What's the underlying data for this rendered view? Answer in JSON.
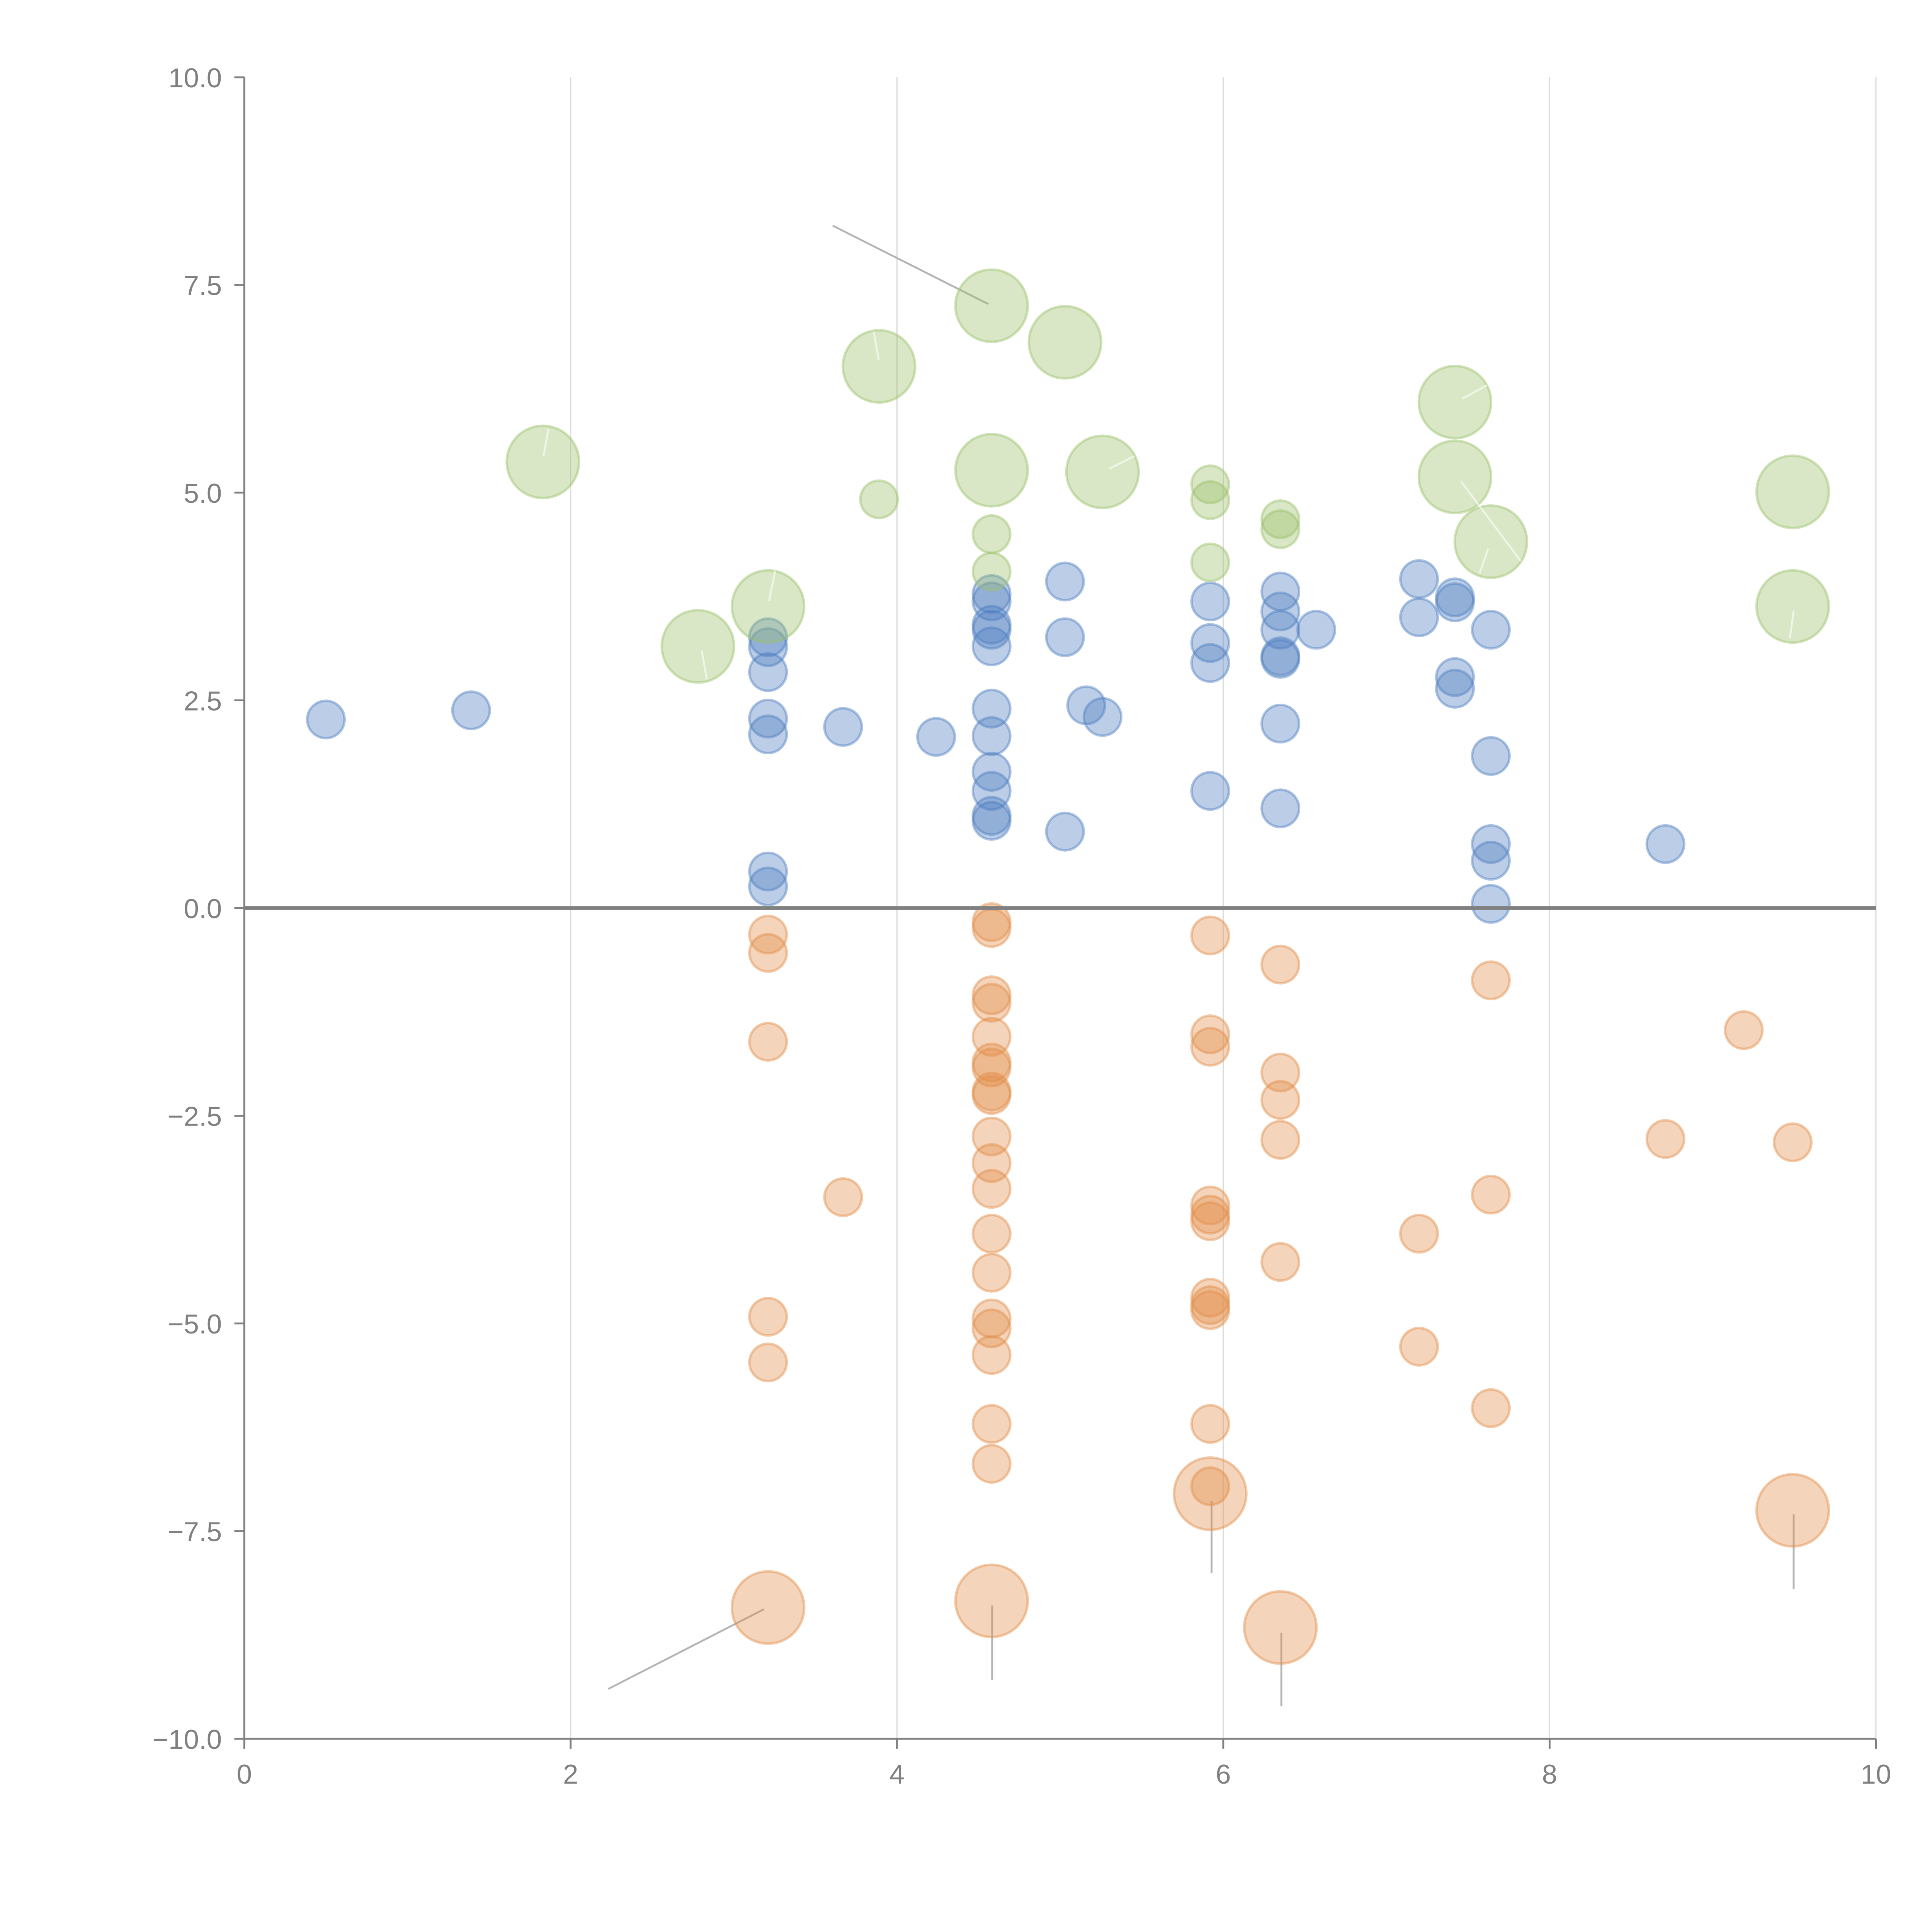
{
  "chart_data": {
    "type": "scatter",
    "title": "",
    "xlabel": "",
    "ylabel": "",
    "xlim": [
      0,
      10
    ],
    "ylim": [
      -10,
      10
    ],
    "grid": "vertical",
    "zero_line": 0,
    "x_ticks": [
      0,
      2,
      4,
      6,
      8,
      10
    ],
    "x_tick_labels": [
      "0",
      "2",
      "4",
      "6",
      "8",
      "10"
    ],
    "y_ticks": [
      10,
      7.5,
      5,
      2.5,
      0,
      -2.5,
      -5,
      -7.5,
      -10
    ],
    "y_tick_labels": [
      "10.0",
      "7.5",
      "5.0",
      "2.5",
      "0.0",
      "−2.5",
      "−5.0",
      "−7.5",
      "−10.0"
    ],
    "legend": "none",
    "series": [
      {
        "name": "blue",
        "color": "#4e7fc0",
        "points": [
          [
            0.5,
            2.27
          ],
          [
            1.39,
            2.38
          ],
          [
            3.21,
            3.26
          ],
          [
            3.21,
            3.14
          ],
          [
            3.21,
            2.84
          ],
          [
            3.21,
            2.28
          ],
          [
            3.21,
            2.09
          ],
          [
            3.21,
            0.44
          ],
          [
            3.21,
            0.26
          ],
          [
            3.67,
            2.18
          ],
          [
            4.24,
            2.06
          ],
          [
            4.58,
            3.78
          ],
          [
            4.58,
            3.69
          ],
          [
            4.58,
            3.41
          ],
          [
            4.58,
            3.35
          ],
          [
            4.58,
            3.15
          ],
          [
            4.58,
            2.4
          ],
          [
            4.58,
            2.07
          ],
          [
            4.58,
            1.64
          ],
          [
            4.58,
            1.41
          ],
          [
            4.58,
            1.11
          ],
          [
            4.58,
            1.05
          ],
          [
            5.03,
            3.93
          ],
          [
            5.03,
            3.26
          ],
          [
            5.03,
            0.92
          ],
          [
            5.16,
            2.44
          ],
          [
            5.26,
            2.3
          ],
          [
            5.92,
            3.69
          ],
          [
            5.92,
            3.19
          ],
          [
            5.92,
            2.95
          ],
          [
            5.92,
            1.41
          ],
          [
            6.35,
            3.81
          ],
          [
            6.35,
            3.57
          ],
          [
            6.35,
            3.35
          ],
          [
            6.35,
            3.03
          ],
          [
            6.35,
            3.0
          ],
          [
            6.35,
            2.22
          ],
          [
            6.35,
            1.2
          ],
          [
            6.57,
            3.35
          ],
          [
            7.2,
            3.96
          ],
          [
            7.2,
            3.5
          ],
          [
            7.42,
            3.74
          ],
          [
            7.42,
            3.68
          ],
          [
            7.42,
            2.78
          ],
          [
            7.42,
            2.64
          ],
          [
            7.64,
            3.35
          ],
          [
            7.64,
            1.83
          ],
          [
            7.64,
            0.77
          ],
          [
            7.64,
            0.57
          ],
          [
            7.64,
            0.05
          ],
          [
            8.71,
            0.77
          ]
        ]
      },
      {
        "name": "green",
        "color": "#9bc06a",
        "points": [
          [
            1.83,
            5.37,
            "L"
          ],
          [
            2.78,
            3.15,
            "L"
          ],
          [
            3.21,
            3.63,
            "L"
          ],
          [
            3.89,
            6.52,
            "L"
          ],
          [
            3.89,
            4.92,
            "S"
          ],
          [
            4.58,
            7.25,
            "L"
          ],
          [
            4.58,
            5.27,
            "L"
          ],
          [
            4.58,
            4.5,
            "S"
          ],
          [
            4.58,
            4.05,
            "S"
          ],
          [
            5.03,
            6.81,
            "L"
          ],
          [
            5.26,
            5.25,
            "L"
          ],
          [
            5.92,
            5.1,
            "S"
          ],
          [
            5.92,
            4.91,
            "S"
          ],
          [
            5.92,
            4.16,
            "S"
          ],
          [
            6.35,
            4.68,
            "S"
          ],
          [
            6.35,
            4.56,
            "S"
          ],
          [
            7.42,
            6.09,
            "L"
          ],
          [
            7.42,
            5.19,
            "L"
          ],
          [
            7.64,
            4.41,
            "L"
          ],
          [
            9.49,
            5.01,
            "L"
          ],
          [
            9.49,
            3.63,
            "L"
          ]
        ]
      },
      {
        "name": "orange",
        "color": "#e38f4a",
        "points": [
          [
            3.21,
            -0.32,
            "S"
          ],
          [
            3.21,
            -0.54,
            "S"
          ],
          [
            3.21,
            -1.61,
            "S"
          ],
          [
            3.21,
            -4.92,
            "S"
          ],
          [
            3.21,
            -5.47,
            "S"
          ],
          [
            3.21,
            -8.42,
            "L"
          ],
          [
            3.67,
            -3.48,
            "S"
          ],
          [
            4.58,
            -0.17,
            "S"
          ],
          [
            4.58,
            -0.24,
            "S"
          ],
          [
            4.58,
            -1.05,
            "S"
          ],
          [
            4.58,
            -1.14,
            "S"
          ],
          [
            4.58,
            -1.55,
            "S"
          ],
          [
            4.58,
            -1.86,
            "S"
          ],
          [
            4.58,
            -1.92,
            "S"
          ],
          [
            4.58,
            -2.21,
            "S"
          ],
          [
            4.58,
            -2.25,
            "S"
          ],
          [
            4.58,
            -2.75,
            "S"
          ],
          [
            4.58,
            -3.07,
            "S"
          ],
          [
            4.58,
            -3.38,
            "S"
          ],
          [
            4.58,
            -3.92,
            "S"
          ],
          [
            4.58,
            -4.39,
            "S"
          ],
          [
            4.58,
            -4.94,
            "S"
          ],
          [
            4.58,
            -5.06,
            "S"
          ],
          [
            4.58,
            -5.38,
            "S"
          ],
          [
            4.58,
            -6.21,
            "S"
          ],
          [
            4.58,
            -6.69,
            "S"
          ],
          [
            4.58,
            -8.34,
            "L"
          ],
          [
            5.92,
            -0.33,
            "S"
          ],
          [
            5.92,
            -1.52,
            "S"
          ],
          [
            5.92,
            -1.67,
            "S"
          ],
          [
            5.92,
            -3.58,
            "S"
          ],
          [
            5.92,
            -3.69,
            "S"
          ],
          [
            5.92,
            -3.77,
            "S"
          ],
          [
            5.92,
            -4.69,
            "S"
          ],
          [
            5.92,
            -4.78,
            "S"
          ],
          [
            5.92,
            -4.84,
            "S"
          ],
          [
            5.92,
            -6.21,
            "S"
          ],
          [
            5.92,
            -6.96,
            "S"
          ],
          [
            5.92,
            -7.05,
            "L"
          ],
          [
            6.35,
            -0.68,
            "S"
          ],
          [
            6.35,
            -1.98,
            "S"
          ],
          [
            6.35,
            -2.31,
            "S"
          ],
          [
            6.35,
            -2.79,
            "S"
          ],
          [
            6.35,
            -4.26,
            "S"
          ],
          [
            6.35,
            -8.66,
            "L"
          ],
          [
            7.2,
            -3.92,
            "S"
          ],
          [
            7.2,
            -5.28,
            "S"
          ],
          [
            7.64,
            -0.87,
            "S"
          ],
          [
            7.64,
            -3.45,
            "S"
          ],
          [
            7.64,
            -6.02,
            "S"
          ],
          [
            8.71,
            -2.78,
            "S"
          ],
          [
            9.19,
            -1.47,
            "S"
          ],
          [
            9.49,
            -2.82,
            "S"
          ],
          [
            9.49,
            -7.25,
            "L"
          ]
        ]
      }
    ],
    "annotations": [
      {
        "color": "#ffffff",
        "text": ""
      }
    ]
  }
}
